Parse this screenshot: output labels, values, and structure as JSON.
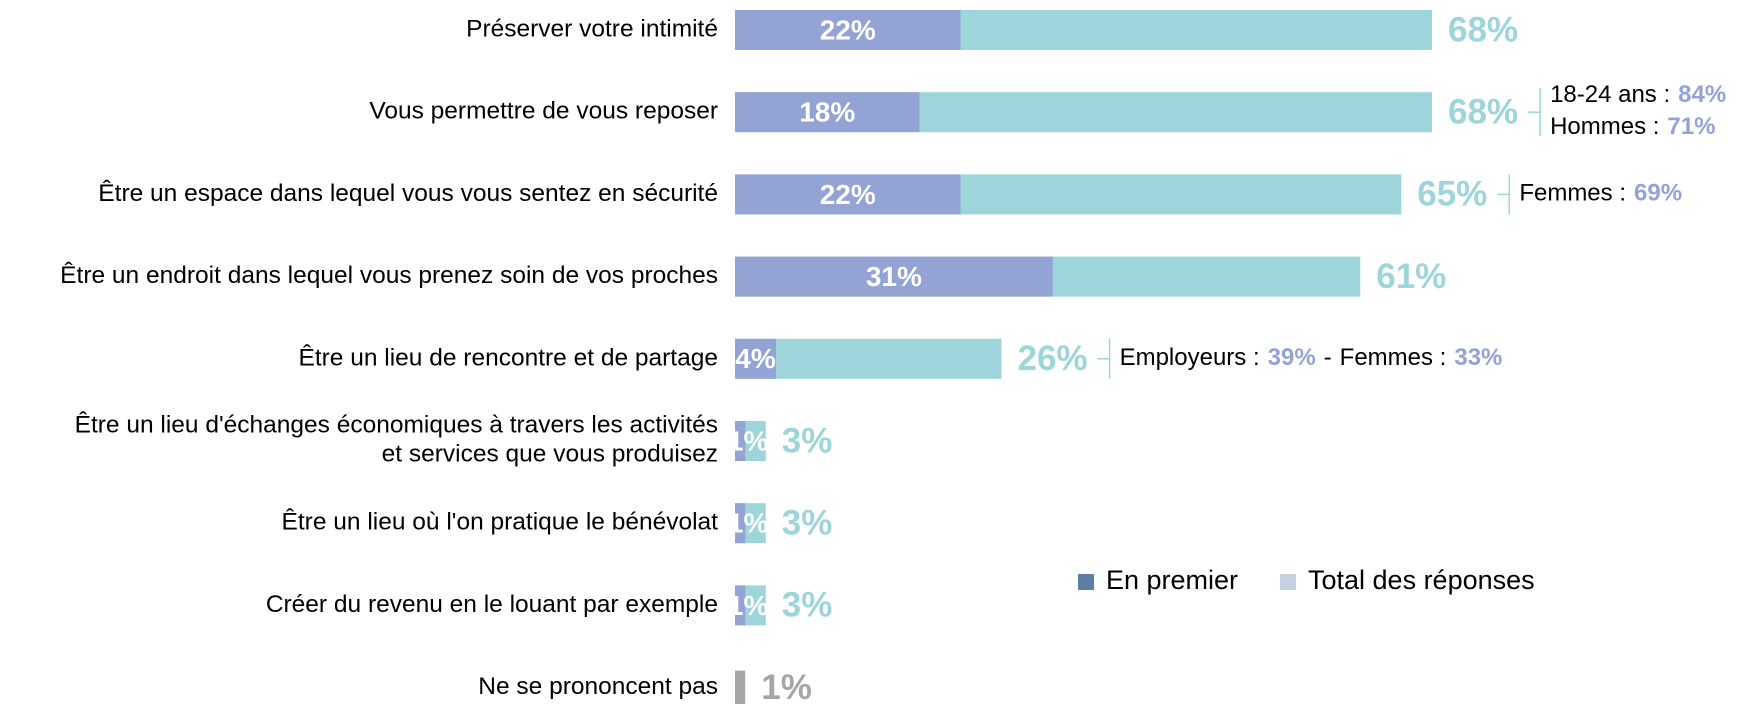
{
  "chart_data": {
    "type": "bar",
    "orientation": "horizontal",
    "categories": [
      "Préserver votre intimité",
      "Vous permettre de vous reposer",
      "Être un espace dans lequel vous vous sentez en sécurité",
      "Être un endroit dans lequel vous prenez soin de vos proches",
      "Être un lieu de rencontre et de partage",
      "Être un lieu d'échanges économiques à travers les activités\net services que vous produisez",
      "Être un lieu où l'on pratique le bénévolat",
      "Créer du revenu en le louant par exemple",
      "Ne se prononcent pas"
    ],
    "series": [
      {
        "name": "Total des réponses",
        "color": "#9dd5da",
        "legend_color": "#c6d0e0",
        "colors": [
          "#9dd5da",
          "#9dd5da",
          "#9dd5da",
          "#9dd5da",
          "#9dd5da",
          "#9dd5da",
          "#9dd5da",
          "#9dd5da",
          "#a6a6a6"
        ],
        "values": [
          68,
          68,
          65,
          61,
          26,
          3,
          3,
          3,
          1
        ],
        "value_labels": [
          "68%",
          "68%",
          "65%",
          "61%",
          "26%",
          "3%",
          "3%",
          "3%",
          "1%"
        ]
      },
      {
        "name": "En premier",
        "color": "#93a3d3",
        "legend_color": "#5b7fa6",
        "values": [
          22,
          18,
          22,
          31,
          4,
          1,
          1,
          1,
          null
        ],
        "value_labels": [
          "22%",
          "18%",
          "22%",
          "31%",
          "4%",
          "1%",
          "1%",
          "1%",
          null
        ]
      }
    ],
    "legend_order": [
      1,
      0
    ],
    "annotations": [
      {
        "category": 1,
        "lines": [
          [
            {
              "label": "18-24 ans :",
              "value": 84,
              "value_label": "84%"
            }
          ],
          [
            {
              "label": "Hommes :",
              "value": 71,
              "value_label": "71%"
            }
          ]
        ]
      },
      {
        "category": 2,
        "lines": [
          [
            {
              "label": "Femmes :",
              "value": 69,
              "value_label": "69%"
            }
          ]
        ]
      },
      {
        "category": 4,
        "lines": [
          [
            {
              "label": "Employeurs :",
              "value": 39,
              "value_label": "39%"
            },
            {
              "separator": "-",
              "label": "Femmes :",
              "value": 33,
              "value_label": "33%"
            }
          ]
        ]
      }
    ],
    "annotation_color": "#93a3d3"
  }
}
